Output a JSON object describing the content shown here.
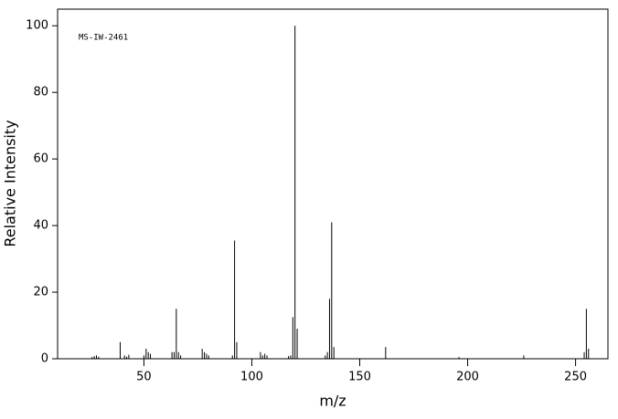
{
  "chart_data": {
    "type": "stem",
    "annotation": "MS-IW-2461",
    "xlabel": "m/z",
    "ylabel": "Relative Intensity",
    "color": "#000000",
    "x": [
      26,
      27,
      28,
      29,
      39,
      41,
      42,
      43,
      50,
      51,
      52,
      53,
      63,
      64,
      65,
      66,
      67,
      77,
      78,
      79,
      80,
      91,
      92,
      93,
      104,
      105,
      106,
      107,
      117,
      118,
      119,
      120,
      121,
      134,
      135,
      136,
      137,
      138,
      162,
      196,
      226,
      254,
      255,
      256
    ],
    "values": [
      0.5,
      0.8,
      1,
      0.6,
      5,
      1,
      0.6,
      1.2,
      1,
      3,
      2,
      1.5,
      2,
      2,
      15,
      2,
      1,
      3,
      2,
      1.5,
      1,
      1,
      35.5,
      5,
      2,
      1,
      1.5,
      1,
      0.8,
      1,
      12.5,
      100,
      9,
      1,
      2,
      18,
      41,
      3.5,
      3.5,
      0.5,
      1,
      2,
      15,
      3
    ],
    "xlim": [
      10,
      265
    ],
    "xticks": [
      50,
      100,
      150,
      200,
      250
    ],
    "ylim": [
      0,
      105
    ],
    "yticks": [
      0,
      20,
      40,
      60,
      80,
      100
    ]
  }
}
